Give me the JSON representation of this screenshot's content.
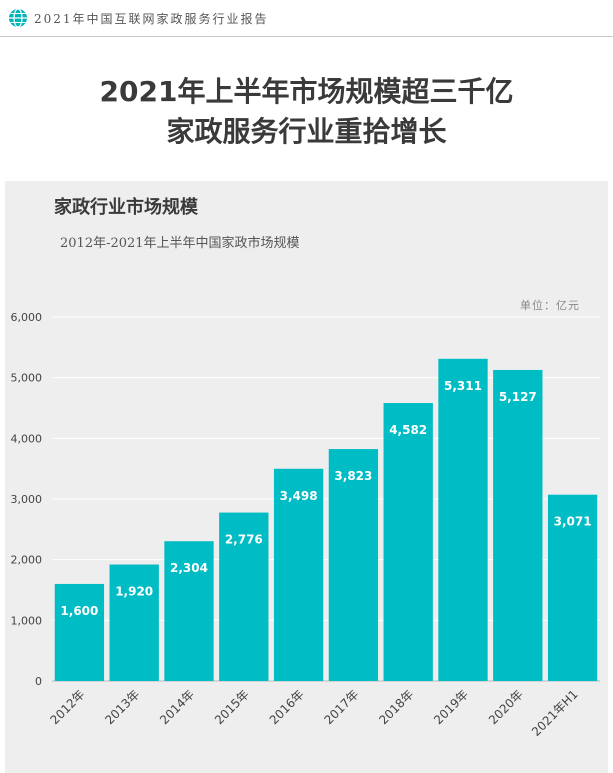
{
  "header": {
    "text": "2021年中国互联网家政服务行业报告",
    "icon": "globe-icon",
    "accent_color": "#00b3b8"
  },
  "page_title": {
    "line1": "2021年上半年市场规模超三千亿",
    "line2": "家政服务行业重拾增长"
  },
  "chart_data": {
    "type": "bar",
    "title": "家政行业市场规模",
    "subtitle": "2012年-2021年上半年中国家政市场规模",
    "unit_label": "单位：亿元",
    "categories": [
      "2012年",
      "2013年",
      "2014年",
      "2015年",
      "2016年",
      "2017年",
      "2018年",
      "2019年",
      "2020年",
      "2021年H1"
    ],
    "values": [
      1600,
      1920,
      2304,
      2776,
      3498,
      3823,
      4582,
      5311,
      5127,
      3071
    ],
    "value_labels": [
      "1,600",
      "1,920",
      "2,304",
      "2,776",
      "3,498",
      "3,823",
      "4,582",
      "5,311",
      "5,127",
      "3,071"
    ],
    "ylim": [
      0,
      6000
    ],
    "yticks": [
      0,
      1000,
      2000,
      3000,
      4000,
      5000,
      6000
    ],
    "ytick_labels": [
      "0",
      "1,000",
      "2,000",
      "3,000",
      "4,000",
      "5,000",
      "6,000"
    ],
    "grid": true,
    "bar_color": "#00bcc4",
    "xlabel": "",
    "ylabel": ""
  }
}
